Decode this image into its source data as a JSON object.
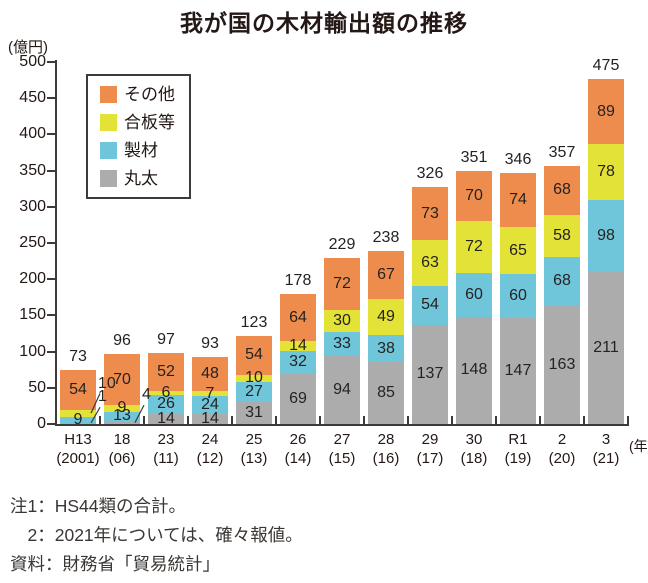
{
  "title": "我が国の木材輸出額の推移",
  "y_axis": {
    "unit_label": "(億円)",
    "min": 0,
    "max": 500,
    "step": 50
  },
  "x_axis": {
    "unit_label": "(年)"
  },
  "legend": {
    "items": [
      {
        "label": "その他",
        "color": "#ed8c4d"
      },
      {
        "label": "合板等",
        "color": "#e3e236"
      },
      {
        "label": "製材",
        "color": "#6fc6db"
      },
      {
        "label": "丸太",
        "color": "#acacac"
      }
    ]
  },
  "chart_data": {
    "type": "bar",
    "stacked": true,
    "title": "我が国の木材輸出額の推移",
    "ylabel": "(億円)",
    "xlabel": "(年)",
    "ylim": [
      0,
      500
    ],
    "ytick_step": 50,
    "grid": false,
    "legend_position": "upper-left-inside",
    "categories_era": [
      "H13",
      "18",
      "23",
      "24",
      "25",
      "26",
      "27",
      "28",
      "29",
      "30",
      "R1",
      "2",
      "3"
    ],
    "categories_west": [
      "(2001)",
      "(06)",
      "(11)",
      "(12)",
      "(13)",
      "(14)",
      "(15)",
      "(16)",
      "(17)",
      "(18)",
      "(19)",
      "(20)",
      "(21)"
    ],
    "series": [
      {
        "name": "丸太",
        "color": "#acacac",
        "values": [
          1,
          4,
          14,
          14,
          31,
          69,
          94,
          85,
          137,
          148,
          147,
          163,
          211
        ]
      },
      {
        "name": "製材",
        "color": "#6fc6db",
        "values": [
          9,
          13,
          26,
          24,
          27,
          32,
          33,
          38,
          54,
          60,
          60,
          68,
          98
        ]
      },
      {
        "name": "合板等",
        "color": "#e3e236",
        "values": [
          10,
          9,
          6,
          7,
          10,
          14,
          30,
          49,
          63,
          72,
          65,
          58,
          78
        ]
      },
      {
        "name": "その他",
        "color": "#ed8c4d",
        "values": [
          54,
          70,
          52,
          48,
          54,
          64,
          72,
          67,
          73,
          70,
          74,
          68,
          89
        ]
      }
    ],
    "totals": [
      73,
      96,
      97,
      93,
      123,
      178,
      229,
      238,
      326,
      351,
      346,
      357,
      475
    ],
    "outside_labels": [
      {
        "bar": 0,
        "series": "合板等",
        "text": "10"
      },
      {
        "bar": 0,
        "series": "丸太",
        "text": "1"
      },
      {
        "bar": 1,
        "series": "丸太",
        "text": "4"
      }
    ]
  },
  "notes": [
    "注1：HS44類の合計。",
    "　2：2021年については、確々報値。",
    "資料：財務省「貿易統計」"
  ]
}
